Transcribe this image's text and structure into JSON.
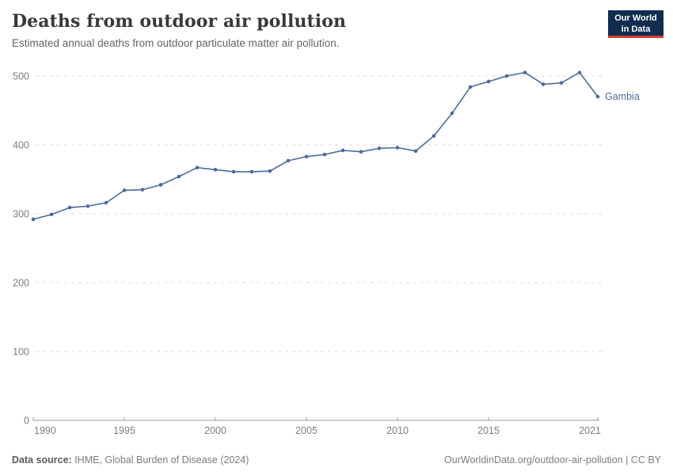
{
  "header": {
    "title": "Deaths from outdoor air pollution",
    "subtitle": "Estimated annual deaths from outdoor particulate matter air pollution.",
    "logo": {
      "line1": "Our World",
      "line2": "in Data",
      "bg_color": "#102d50",
      "accent_color": "#d73c34"
    }
  },
  "chart_data": {
    "type": "line",
    "title": "Deaths from outdoor air pollution",
    "xlabel": "",
    "ylabel": "",
    "xlim": [
      1990,
      2021
    ],
    "ylim": [
      0,
      500
    ],
    "xticks": [
      1990,
      1995,
      2000,
      2005,
      2010,
      2015,
      2021
    ],
    "yticks": [
      0,
      100,
      200,
      300,
      400,
      500
    ],
    "grid": "horizontal-dashed",
    "legend_position": "end-of-line",
    "x": [
      1990,
      1991,
      1992,
      1993,
      1994,
      1995,
      1996,
      1997,
      1998,
      1999,
      2000,
      2001,
      2002,
      2003,
      2004,
      2005,
      2006,
      2007,
      2008,
      2009,
      2010,
      2011,
      2012,
      2013,
      2014,
      2015,
      2016,
      2017,
      2018,
      2019,
      2020,
      2021
    ],
    "series": [
      {
        "name": "Gambia",
        "color": "#4b6b9f",
        "values": [
          292,
          299,
          309,
          311,
          316,
          334,
          335,
          342,
          354,
          367,
          364,
          361,
          361,
          362,
          377,
          383,
          386,
          392,
          390,
          395,
          396,
          391,
          413,
          446,
          484,
          492,
          500,
          505,
          488,
          490,
          505,
          470
        ]
      }
    ],
    "colors": {
      "gridline": "#dcdcdc",
      "axis": "#999999",
      "tick_label": "#7d7d7d"
    }
  },
  "footer": {
    "source_label": "Data source:",
    "source_text": " IHME, Global Burden of Disease (2024)",
    "credit": "OurWorldinData.org/outdoor-air-pollution | CC BY"
  }
}
